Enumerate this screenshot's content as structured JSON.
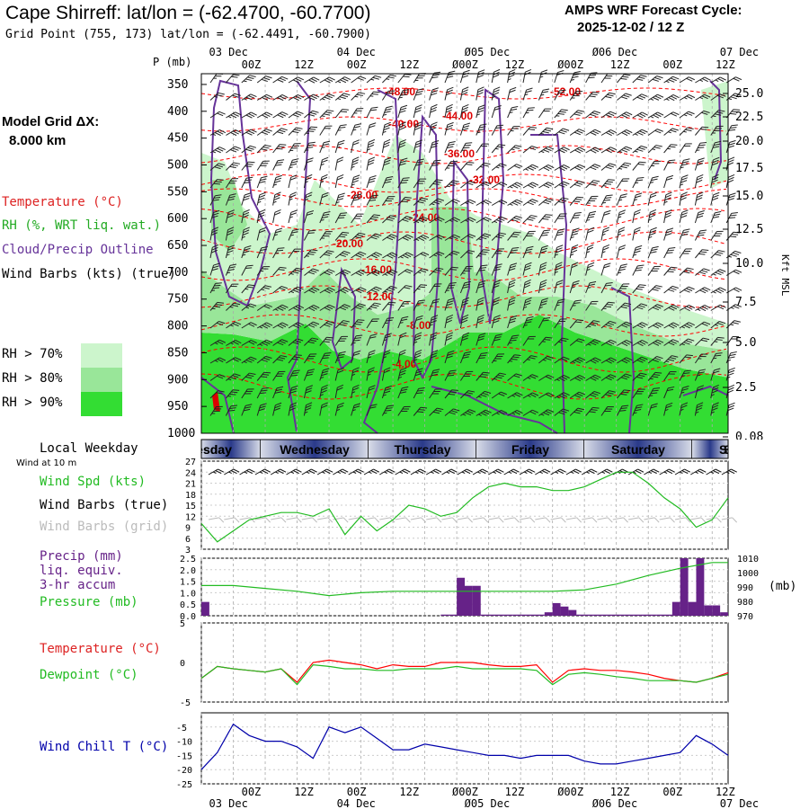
{
  "header": {
    "title": "Cape Shirreff:  lat/lon = (-62.4700, -60.7700)",
    "grid_point": "Grid Point (755, 173) lat/lon = (-62.4491, -60.7900)",
    "cycle_label": "AMPS WRF Forecast Cycle:",
    "cycle_value": "2025-12-02 / 12  Z"
  },
  "model_grid": {
    "label": "Model Grid ΔX:",
    "value": "8.000 km"
  },
  "legend": {
    "temperature": "Temperature (°C)",
    "rh": "RH (%, WRT liq. wat.)",
    "cloud": "Cloud/Precip Outline",
    "wind": "Wind Barbs (kts) (true)",
    "rh70": "RH > 70%",
    "rh80": "RH > 80%",
    "rh90": "RH > 90%",
    "local_weekday": "Local Weekday",
    "wind10m": "Wind at 10 m",
    "wind_spd": "Wind Spd (kts)",
    "wind_barbs_true": "Wind Barbs (true)",
    "wind_barbs_grid": "Wind Barbs (grid)",
    "precip": "Precip (mm)",
    "liq": "liq. equiv.",
    "accum": "3-hr accum",
    "pressure": "Pressure (mb)",
    "temp2": "Temperature (°C)",
    "dewpoint": "Dewpoint (°C)",
    "windchill": "Wind Chill T (°C)",
    "pressure_unit": "(mb)",
    "kft": "Kft MSL",
    "p_axis": "P (mb)"
  },
  "colors": {
    "rh70": "#ccf5cc",
    "rh80": "#99e699",
    "rh90": "#33dd33",
    "temp": "#ff0000",
    "cloud": "#663399",
    "precip": "#662288",
    "pressure": "#22bb22",
    "windspd": "#22bb22",
    "dewpoint": "#22bb22",
    "windchill": "#0000aa",
    "weekday_dark": "#2a3a8a",
    "weekday_light": "#d8dce8"
  },
  "time_axis": {
    "top_dates": [
      "03 Dec",
      "04 Dec",
      "Ø05 Dec",
      "Ø06 Dec",
      "07 Dec"
    ],
    "hour_ticks": [
      "00Z",
      "12Z",
      "00Z",
      "12Z",
      "Ø00Z",
      "12Z",
      "Ø00Z",
      "12Z",
      "00Z",
      "12Z"
    ],
    "weekdays": [
      "Tuesday",
      "Wednesday",
      "Thursday",
      "Friday",
      "Saturday",
      "Sunday"
    ]
  },
  "chart_data": [
    {
      "type": "heatmap",
      "title": "Pressure-time cross section",
      "ylabel": "P (mb)",
      "y2label": "Kft MSL",
      "pressure_ticks": [
        350,
        400,
        450,
        500,
        550,
        600,
        650,
        700,
        750,
        800,
        850,
        900,
        950,
        1000
      ],
      "height_ticks": [
        "25.0",
        "22.5",
        "20.0",
        "17.5",
        "15.0",
        "12.5",
        "10.0",
        "7.5",
        "5.0",
        "2.5",
        "0.08"
      ],
      "temperature_contours": [
        "-48.00",
        "-52.00",
        "-40.00",
        "-44.00",
        "-36.00",
        "-32.00",
        "-28.00",
        "-24.00",
        "-20.00",
        "-16.00",
        "-12.00",
        "-8.00",
        "-4.00"
      ],
      "rh_thresholds": [
        70,
        80,
        90
      ]
    },
    {
      "type": "line",
      "title": "Wind Spd (kts)",
      "yticks": [
        3,
        6,
        9,
        12,
        15,
        18,
        21,
        24,
        27
      ],
      "ylim": [
        3,
        27
      ],
      "x_hours": [
        0,
        6,
        12,
        18,
        24,
        30,
        36,
        42,
        48,
        54,
        60,
        66,
        72,
        78,
        84,
        90,
        96,
        102,
        108,
        114,
        120,
        126,
        132,
        138,
        144,
        150,
        156,
        162,
        168,
        174,
        180,
        186,
        192,
        198
      ],
      "values": [
        10,
        5,
        8,
        11,
        12,
        13,
        13,
        12,
        14,
        7,
        12,
        8,
        11,
        15,
        14,
        12,
        13,
        17,
        20,
        21,
        20,
        20,
        19,
        19,
        20,
        22,
        24,
        24,
        21,
        17,
        14,
        9,
        11,
        17
      ]
    },
    {
      "type": "bar",
      "title": "Precip (mm) liq. equiv. 3-hr accum / Pressure (mb)",
      "yticks": [
        "0.0",
        "0.5",
        "1.0",
        "1.5",
        "2.0",
        "2.5"
      ],
      "y2ticks": [
        970,
        980,
        990,
        1000,
        1010
      ],
      "precip_x_hours": [
        0,
        3,
        6,
        9,
        12,
        15,
        18,
        21,
        24,
        27,
        30,
        33,
        36,
        39,
        42,
        45,
        48,
        51,
        54,
        57,
        60,
        63,
        66,
        69,
        72,
        75,
        78,
        81,
        84,
        87,
        90,
        93,
        96,
        99,
        102,
        105,
        108,
        111,
        114,
        117,
        120,
        123,
        126,
        129,
        132,
        135,
        138,
        141,
        144,
        147,
        150,
        153,
        156,
        159,
        162,
        165,
        168,
        171,
        174,
        177,
        180,
        183,
        186,
        189,
        192,
        195
      ],
      "precip_values": [
        0.6,
        0,
        0,
        0,
        0,
        0,
        0,
        0,
        0,
        0,
        0,
        0,
        0,
        0,
        0,
        0,
        0,
        0,
        0,
        0,
        0,
        0,
        0,
        0,
        0,
        0,
        0,
        0,
        0,
        0,
        0.05,
        0.05,
        1.65,
        1.3,
        1.3,
        0.05,
        0.05,
        0.05,
        0.05,
        0.05,
        0.05,
        0.05,
        0.05,
        0.15,
        0.55,
        0.4,
        0.25,
        0.05,
        0.05,
        0.05,
        0.05,
        0.05,
        0.05,
        0.05,
        0.05,
        0.05,
        0.05,
        0.05,
        0.05,
        0.6,
        2.5,
        0.6,
        2.5,
        0.45,
        0.45,
        0.15
      ],
      "pressure_x_hours": [
        0,
        12,
        24,
        36,
        48,
        60,
        72,
        84,
        96,
        108,
        120,
        132,
        144,
        156,
        168,
        180,
        192,
        198
      ],
      "pressure_values": [
        991,
        991,
        989,
        987,
        984,
        986,
        987,
        987,
        987,
        987,
        987,
        987,
        988,
        992,
        998,
        1003,
        1007,
        1007
      ]
    },
    {
      "type": "line",
      "title": "Temperature / Dewpoint (°C)",
      "yticks": [
        5,
        0,
        -5
      ],
      "ylim": [
        -5,
        5
      ],
      "x_hours": [
        0,
        6,
        12,
        18,
        24,
        30,
        36,
        42,
        48,
        54,
        60,
        66,
        72,
        78,
        84,
        90,
        96,
        102,
        108,
        114,
        120,
        126,
        132,
        138,
        144,
        150,
        156,
        162,
        168,
        174,
        180,
        186,
        192,
        198
      ],
      "temperature": [
        -2,
        -0.5,
        -0.8,
        -1,
        -1.2,
        -0.8,
        -2.5,
        0,
        0.3,
        0,
        -0.3,
        -0.8,
        -0.3,
        -0.5,
        -0.5,
        0,
        0,
        0,
        -0.3,
        -0.5,
        -0.5,
        -0.3,
        -2.5,
        -1,
        -0.8,
        -1,
        -1,
        -1.2,
        -1.5,
        -2,
        -2.3,
        -2.5,
        -2,
        -1.3
      ],
      "dewpoint": [
        -2,
        -0.5,
        -0.8,
        -1,
        -1.2,
        -0.8,
        -2.8,
        -0.3,
        -0.5,
        -0.8,
        -0.8,
        -1,
        -1,
        -0.8,
        -0.8,
        -0.8,
        -0.5,
        -0.8,
        -0.8,
        -0.8,
        -0.8,
        -1,
        -2.8,
        -1.5,
        -1.3,
        -1.5,
        -1.8,
        -2,
        -2.3,
        -2.3,
        -2.3,
        -2.5,
        -2,
        -1.5
      ]
    },
    {
      "type": "line",
      "title": "Wind Chill T (°C)",
      "yticks": [
        -5,
        -10,
        -15,
        -20,
        -25
      ],
      "ylim": [
        -25,
        0
      ],
      "x_hours": [
        0,
        6,
        12,
        18,
        24,
        30,
        36,
        42,
        48,
        54,
        60,
        66,
        72,
        78,
        84,
        90,
        96,
        102,
        108,
        114,
        120,
        126,
        132,
        138,
        144,
        150,
        156,
        162,
        168,
        174,
        180,
        186,
        192,
        198
      ],
      "values": [
        -20,
        -14,
        -4,
        -8,
        -10,
        -10,
        -12,
        -16,
        -5,
        -7,
        -5,
        -9,
        -13,
        -13,
        -11,
        -12,
        -13,
        -14,
        -15,
        -15,
        -16,
        -15,
        -15,
        -15,
        -17,
        -18,
        -18,
        -17,
        -16,
        -15,
        -14,
        -8,
        -11,
        -15
      ]
    }
  ]
}
